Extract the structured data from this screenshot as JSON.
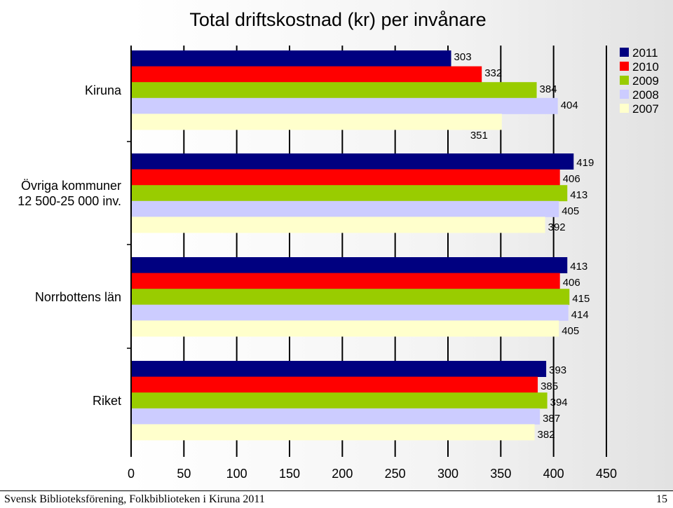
{
  "chart_data": {
    "type": "bar",
    "orientation": "horizontal",
    "title": "Total driftskostnad (kr) per invånare",
    "categories": [
      "Kiruna",
      "Övriga kommuner 12 500-25 000 inv.",
      "Norrbottens län",
      "Riket"
    ],
    "category_lines": [
      [
        "Kiruna"
      ],
      [
        "Övriga kommuner",
        "12 500-25 000 inv."
      ],
      [
        "Norrbottens län"
      ],
      [
        "Riket"
      ]
    ],
    "series": [
      {
        "name": "2011",
        "color": "#000080",
        "values": [
          303,
          419,
          413,
          393
        ]
      },
      {
        "name": "2010",
        "color": "#ff0000",
        "values": [
          332,
          406,
          406,
          385
        ]
      },
      {
        "name": "2009",
        "color": "#99cc00",
        "values": [
          384,
          413,
          415,
          394
        ]
      },
      {
        "name": "2008",
        "color": "#ccccff",
        "values": [
          404,
          405,
          414,
          387
        ]
      },
      {
        "name": "2007",
        "color": "#ffffcc",
        "values": [
          351,
          392,
          405,
          382
        ]
      }
    ],
    "xlim": [
      0,
      450
    ],
    "xticks": [
      0,
      50,
      100,
      150,
      200,
      250,
      300,
      350,
      400,
      450
    ],
    "grid": true,
    "legend_position": "top-right",
    "xlabel": "",
    "ylabel": ""
  },
  "footer": {
    "source": "Svensk Biblioteksförening, Folkbiblioteken i Kiruna 2011",
    "page_number": "15"
  }
}
